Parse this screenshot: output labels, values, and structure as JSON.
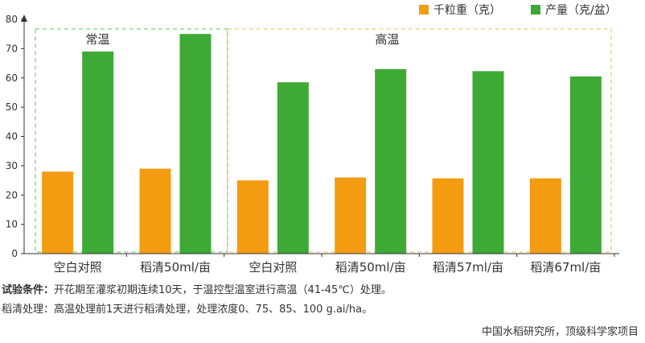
{
  "chart_data": {
    "type": "bar",
    "categories": [
      "空白对照",
      "稻清50ml/亩",
      "空白对照",
      "稻清50ml/亩",
      "稻清57ml/亩",
      "稻清67ml/亩"
    ],
    "series": [
      {
        "name": "千粒重（克）",
        "color": "#f39c12",
        "values": [
          28,
          29,
          25,
          26,
          25.7,
          25.7
        ]
      },
      {
        "name": "产量（克/盆）",
        "color": "#3ea935",
        "values": [
          69,
          75,
          58.5,
          63,
          62.3,
          60.5
        ]
      }
    ],
    "groups": [
      {
        "label": "常温",
        "color": "#7ed07a",
        "categories": [
          0,
          1
        ]
      },
      {
        "label": "高温",
        "color": "#f2c67a",
        "categories": [
          2,
          3,
          4,
          5
        ]
      }
    ],
    "ylim": [
      0,
      80
    ],
    "yticks": [
      0,
      10,
      20,
      30,
      40,
      50,
      60,
      70,
      80
    ],
    "grid": false,
    "legend": "top-right"
  },
  "notes": {
    "line1_label": "试验条件：",
    "line1_text": "开花期至灌浆初期连续10天，于温控型温室进行高温（41-45℃）处理。",
    "line2_text": "稻清处理：高温处理前1天进行稻清处理，处理浓度0、75、85、100 g.ai/ha。"
  },
  "credit": "中国水稻研究所，顶级科学家项目"
}
